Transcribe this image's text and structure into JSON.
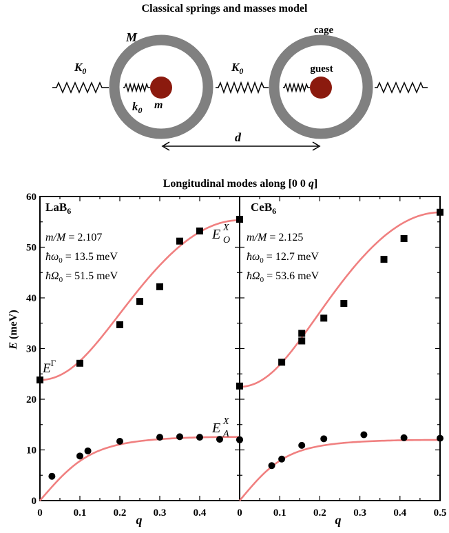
{
  "model": {
    "title": "Classical springs and masses model",
    "label_M": "M",
    "label_cage": "cage",
    "label_K0": "K",
    "label_K0_sub": "0",
    "label_k0": "k",
    "label_k0_sub": "0",
    "label_m": "m",
    "label_guest": "guest",
    "label_d": "d",
    "colors": {
      "cage": "#808080",
      "guest": "#8b1a0e"
    }
  },
  "plot": {
    "title_prefix": "Longitudinal modes along [0 0 ",
    "title_var": "q",
    "title_suffix": "]",
    "ylabel_var": "E",
    "ylabel_unit": " (meV)",
    "xlabel": "q",
    "colors": {
      "curve": "#f08080",
      "points": "#000000"
    }
  },
  "chart_data": [
    {
      "type": "scatter",
      "panel": "LaB",
      "panel_sub": "6",
      "params": {
        "ratio_label": "m/M",
        "ratio_value": "2.107",
        "omega_label": "ħω",
        "omega_sub": "0",
        "omega_value": "13.5 meV",
        "Omega_label": "ħΩ",
        "Omega_sub": "0",
        "Omega_value": "51.5 meV"
      },
      "annotations": {
        "gamma": "E",
        "gamma_sup": "Γ",
        "optic": "E",
        "optic_sup": "X",
        "optic_sub": "O",
        "acoustic": "E",
        "acoustic_sup": "X",
        "acoustic_sub": "A"
      },
      "xlim": [
        0,
        0.5
      ],
      "ylim": [
        0,
        60
      ],
      "xticks": [
        "0",
        "0.1",
        "0.2",
        "0.3",
        "0.4"
      ],
      "yticks": [
        "0",
        "10",
        "20",
        "30",
        "40",
        "50",
        "60"
      ],
      "optic_points": [
        [
          0,
          23.8
        ],
        [
          0.1,
          27.1
        ],
        [
          0.2,
          34.7
        ],
        [
          0.25,
          39.3
        ],
        [
          0.3,
          42.2
        ],
        [
          0.35,
          51.2
        ],
        [
          0.4,
          53.2
        ],
        [
          0.5,
          55.5
        ]
      ],
      "acoustic_points": [
        [
          0.03,
          4.8
        ],
        [
          0.1,
          8.8
        ],
        [
          0.12,
          9.8
        ],
        [
          0.2,
          11.7
        ],
        [
          0.3,
          12.5
        ],
        [
          0.35,
          12.6
        ],
        [
          0.4,
          12.5
        ],
        [
          0.45,
          12.1
        ],
        [
          0.5,
          12.0
        ]
      ],
      "model_params": {
        "mM": 2.107,
        "w0": 13.5,
        "W0": 51.5
      }
    },
    {
      "type": "scatter",
      "panel": "CeB",
      "panel_sub": "6",
      "params": {
        "ratio_label": "m/M",
        "ratio_value": "2.125",
        "omega_label": "ħω",
        "omega_sub": "0",
        "omega_value": "12.7 meV",
        "Omega_label": "ħΩ",
        "Omega_sub": "0",
        "Omega_value": "53.6 meV"
      },
      "xlim": [
        0,
        0.5
      ],
      "ylim": [
        0,
        60
      ],
      "xticks": [
        "0",
        "0.1",
        "0.2",
        "0.3",
        "0.4",
        "0.5"
      ],
      "optic_points": [
        [
          0,
          22.6
        ],
        [
          0.105,
          27.3
        ],
        [
          0.155,
          33.0
        ],
        [
          0.155,
          31.5
        ],
        [
          0.21,
          36.0
        ],
        [
          0.26,
          38.9
        ],
        [
          0.36,
          47.6
        ],
        [
          0.41,
          51.7
        ],
        [
          0.5,
          56.9
        ]
      ],
      "acoustic_points": [
        [
          0,
          12.0
        ],
        [
          0.08,
          6.9
        ],
        [
          0.105,
          8.2
        ],
        [
          0.155,
          10.9
        ],
        [
          0.21,
          12.2
        ],
        [
          0.31,
          13.0
        ],
        [
          0.41,
          12.4
        ],
        [
          0.5,
          12.3
        ]
      ],
      "model_params": {
        "mM": 2.125,
        "w0": 12.7,
        "W0": 53.6
      }
    }
  ]
}
